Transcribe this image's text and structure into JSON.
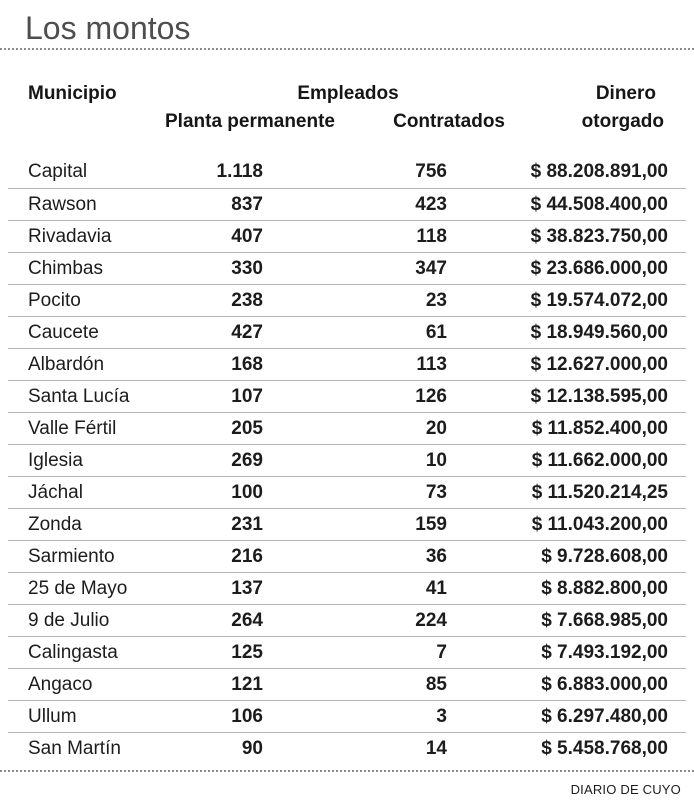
{
  "title": "Los montos",
  "source_credit": "DIARIO DE CUYO",
  "colors": {
    "title_gray": "#4e4e50",
    "text_black": "#1c1c1c",
    "row_separator": "#b4b4b4",
    "dotted_divider": "#8c8c8c",
    "background": "#ffffff"
  },
  "chart_data": {
    "type": "table",
    "title": "Los montos",
    "column_groups": [
      {
        "label": "Empleados",
        "spans": [
          "Planta permanente",
          "Contratados"
        ]
      }
    ],
    "headers": {
      "municipio": "Municipio",
      "empleados_group": "Empleados",
      "planta_permanente": "Planta permanente",
      "contratados": "Contratados",
      "dinero_line1": "Dinero",
      "dinero_line2": "otorgado"
    },
    "rows": [
      {
        "municipio": "Capital",
        "planta_permanente": "1.118",
        "contratados": "756",
        "dinero_otorgado": "$ 88.208.891,00"
      },
      {
        "municipio": "Rawson",
        "planta_permanente": "837",
        "contratados": "423",
        "dinero_otorgado": "$ 44.508.400,00"
      },
      {
        "municipio": "Rivadavia",
        "planta_permanente": "407",
        "contratados": "118",
        "dinero_otorgado": "$ 38.823.750,00"
      },
      {
        "municipio": "Chimbas",
        "planta_permanente": "330",
        "contratados": "347",
        "dinero_otorgado": "$ 23.686.000,00"
      },
      {
        "municipio": "Pocito",
        "planta_permanente": "238",
        "contratados": "23",
        "dinero_otorgado": "$ 19.574.072,00"
      },
      {
        "municipio": "Caucete",
        "planta_permanente": "427",
        "contratados": "61",
        "dinero_otorgado": "$ 18.949.560,00"
      },
      {
        "municipio": "Albardón",
        "planta_permanente": "168",
        "contratados": "113",
        "dinero_otorgado": "$ 12.627.000,00"
      },
      {
        "municipio": "Santa Lucía",
        "planta_permanente": "107",
        "contratados": "126",
        "dinero_otorgado": "$ 12.138.595,00"
      },
      {
        "municipio": "Valle Fértil",
        "planta_permanente": "205",
        "contratados": "20",
        "dinero_otorgado": "$ 11.852.400,00"
      },
      {
        "municipio": "Iglesia",
        "planta_permanente": "269",
        "contratados": "10",
        "dinero_otorgado": "$ 11.662.000,00"
      },
      {
        "municipio": "Jáchal",
        "planta_permanente": "100",
        "contratados": "73",
        "dinero_otorgado": "$ 11.520.214,25"
      },
      {
        "municipio": "Zonda",
        "planta_permanente": "231",
        "contratados": "159",
        "dinero_otorgado": "$ 11.043.200,00"
      },
      {
        "municipio": "Sarmiento",
        "planta_permanente": "216",
        "contratados": "36",
        "dinero_otorgado": "$ 9.728.608,00"
      },
      {
        "municipio": "25 de Mayo",
        "planta_permanente": "137",
        "contratados": "41",
        "dinero_otorgado": "$ 8.882.800,00"
      },
      {
        "municipio": "9 de Julio",
        "planta_permanente": "264",
        "contratados": "224",
        "dinero_otorgado": "$ 7.668.985,00"
      },
      {
        "municipio": "Calingasta",
        "planta_permanente": "125",
        "contratados": "7",
        "dinero_otorgado": "$ 7.493.192,00"
      },
      {
        "municipio": "Angaco",
        "planta_permanente": "121",
        "contratados": "85",
        "dinero_otorgado": "$ 6.883.000,00"
      },
      {
        "municipio": "Ullum",
        "planta_permanente": "106",
        "contratados": "3",
        "dinero_otorgado": "$ 6.297.480,00"
      },
      {
        "municipio": "San Martín",
        "planta_permanente": "90",
        "contratados": "14",
        "dinero_otorgado": "$ 5.458.768,00"
      }
    ],
    "source": "DIARIO DE CUYO"
  }
}
